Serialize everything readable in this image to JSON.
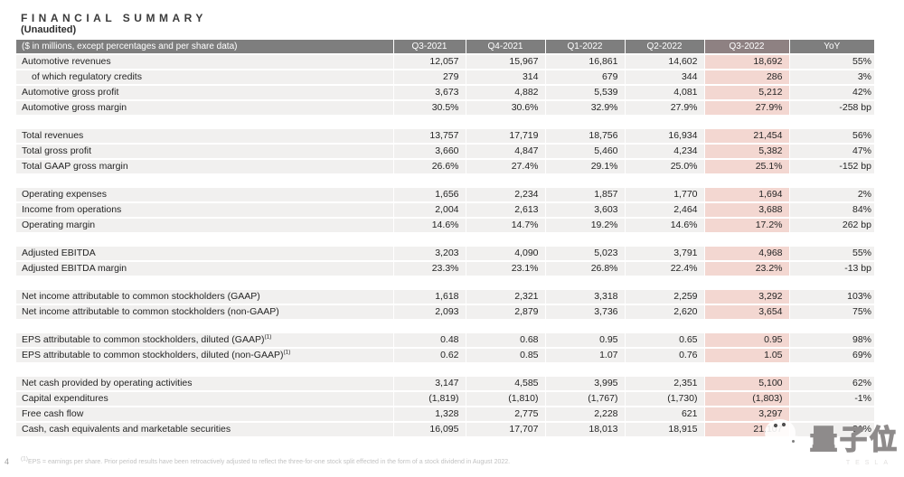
{
  "page": {
    "title": "FINANCIAL SUMMARY",
    "subtitle": "(Unaudited)",
    "page_number": "4",
    "footnote_sup": "(1)",
    "footnote": "EPS = earnings per share. Prior period results have been retroactively adjusted to reflect the three-for-one stock split effected in the form of a stock dividend in August 2022.",
    "faint_text": "TESLA"
  },
  "watermark": {
    "text": "量子位"
  },
  "colors": {
    "header_bg": "#7e7e7e",
    "header_highlight_bg": "#8e8182",
    "row_bg": "#f1f0ef",
    "highlight_column_bg": "#f3d7d1",
    "header_text": "#ffffff"
  },
  "table": {
    "header": [
      "($ in millions, except percentages and per share data)",
      "Q3-2021",
      "Q4-2021",
      "Q1-2022",
      "Q2-2022",
      "Q3-2022",
      "YoY"
    ],
    "highlight_column": "Q3-2022",
    "sections": [
      {
        "rows": [
          {
            "label": "Automotive revenues",
            "values": [
              "12,057",
              "15,967",
              "16,861",
              "14,602",
              "18,692",
              "55%"
            ]
          },
          {
            "label": "of which regulatory credits",
            "indent": true,
            "values": [
              "279",
              "314",
              "679",
              "344",
              "286",
              "3%"
            ]
          },
          {
            "label": "Automotive gross profit",
            "values": [
              "3,673",
              "4,882",
              "5,539",
              "4,081",
              "5,212",
              "42%"
            ]
          },
          {
            "label": "Automotive gross margin",
            "values": [
              "30.5%",
              "30.6%",
              "32.9%",
              "27.9%",
              "27.9%",
              "-258 bp"
            ]
          }
        ]
      },
      {
        "rows": [
          {
            "label": "Total revenues",
            "values": [
              "13,757",
              "17,719",
              "18,756",
              "16,934",
              "21,454",
              "56%"
            ]
          },
          {
            "label": "Total gross profit",
            "values": [
              "3,660",
              "4,847",
              "5,460",
              "4,234",
              "5,382",
              "47%"
            ]
          },
          {
            "label": "Total GAAP gross margin",
            "values": [
              "26.6%",
              "27.4%",
              "29.1%",
              "25.0%",
              "25.1%",
              "-152 bp"
            ]
          }
        ]
      },
      {
        "rows": [
          {
            "label": "Operating expenses",
            "values": [
              "1,656",
              "2,234",
              "1,857",
              "1,770",
              "1,694",
              "2%"
            ]
          },
          {
            "label": "Income from operations",
            "values": [
              "2,004",
              "2,613",
              "3,603",
              "2,464",
              "3,688",
              "84%"
            ]
          },
          {
            "label": "Operating margin",
            "values": [
              "14.6%",
              "14.7%",
              "19.2%",
              "14.6%",
              "17.2%",
              "262 bp"
            ]
          }
        ]
      },
      {
        "rows": [
          {
            "label": "Adjusted EBITDA",
            "values": [
              "3,203",
              "4,090",
              "5,023",
              "3,791",
              "4,968",
              "55%"
            ]
          },
          {
            "label": "Adjusted EBITDA margin",
            "values": [
              "23.3%",
              "23.1%",
              "26.8%",
              "22.4%",
              "23.2%",
              "-13 bp"
            ]
          }
        ]
      },
      {
        "rows": [
          {
            "label": "Net income attributable to common stockholders (GAAP)",
            "values": [
              "1,618",
              "2,321",
              "3,318",
              "2,259",
              "3,292",
              "103%"
            ]
          },
          {
            "label": "Net income attributable to common stockholders (non-GAAP)",
            "values": [
              "2,093",
              "2,879",
              "3,736",
              "2,620",
              "3,654",
              "75%"
            ]
          }
        ]
      },
      {
        "rows": [
          {
            "label": "EPS attributable to common stockholders, diluted (GAAP)",
            "sup": "(1)",
            "values": [
              "0.48",
              "0.68",
              "0.95",
              "0.65",
              "0.95",
              "98%"
            ]
          },
          {
            "label": "EPS attributable to common stockholders, diluted (non-GAAP)",
            "sup": "(1)",
            "values": [
              "0.62",
              "0.85",
              "1.07",
              "0.76",
              "1.05",
              "69%"
            ]
          }
        ]
      },
      {
        "rows": [
          {
            "label": "Net cash provided by operating activities",
            "values": [
              "3,147",
              "4,585",
              "3,995",
              "2,351",
              "5,100",
              "62%"
            ]
          },
          {
            "label": "Capital expenditures",
            "values": [
              "(1,819)",
              "(1,810)",
              "(1,767)",
              "(1,730)",
              "(1,803)",
              "-1%"
            ]
          },
          {
            "label": "Free cash flow",
            "values": [
              "1,328",
              "2,775",
              "2,228",
              "621",
              "3,297",
              ""
            ]
          },
          {
            "label": "Cash, cash equivalents and marketable securities",
            "values": [
              "16,095",
              "17,707",
              "18,013",
              "18,915",
              "21,107",
              "31%"
            ]
          }
        ]
      }
    ]
  }
}
